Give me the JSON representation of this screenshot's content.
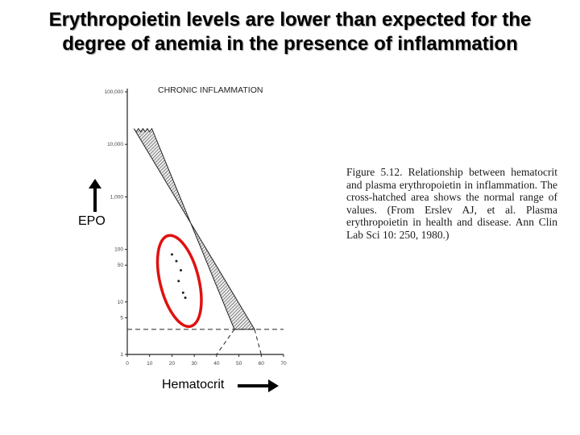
{
  "slide": {
    "title_line1": "Erythropoietin levels are lower than expected for the",
    "title_line2": "degree of anemia in the presence of inflammation",
    "epo_label": "EPO",
    "hematocrit_label": "Hematocrit"
  },
  "caption": "Figure 5.12. Relationship between hematocrit and plasma erythropoietin in inflammation. The cross-hatched area shows the normal range of values. (From Erslev AJ, et al. Plasma erythropoietin in health and disease. Ann Clin Lab Sci 10: 250, 1980.)",
  "colors": {
    "highlight_ellipse": "#e01010",
    "ink": "#222222"
  },
  "chart_data": {
    "type": "area",
    "title": "CHRONIC INFLAMMATION",
    "xlabel": "",
    "ylabel": "",
    "x_ticks": [
      "0",
      "10",
      "20",
      "30",
      "40",
      "50",
      "60",
      "70"
    ],
    "y_ticks": [
      "1",
      "5",
      "10",
      "50",
      "100",
      "1,000",
      "10,000",
      "100,000"
    ],
    "y_scale": "log",
    "xlim": [
      0,
      70
    ],
    "ylim": [
      1,
      100000
    ],
    "normal_range_band": {
      "upper_edge": [
        [
          3,
          20000
        ],
        [
          57,
          3
        ]
      ],
      "lower_edge": [
        [
          11,
          20000
        ],
        [
          48,
          3
        ]
      ],
      "top_at_hematocrit": [
        3,
        11
      ],
      "bottom_at_hematocrit": [
        48,
        57
      ]
    },
    "baseline_y": 3,
    "extension_lines": [
      {
        "from": [
          48,
          3
        ],
        "to": [
          40,
          1
        ]
      },
      {
        "from": [
          57,
          3
        ],
        "to": [
          60,
          1
        ]
      }
    ],
    "data_points": [
      {
        "x": 20,
        "y": 80
      },
      {
        "x": 22,
        "y": 60
      },
      {
        "x": 24,
        "y": 40
      },
      {
        "x": 23,
        "y": 25
      },
      {
        "x": 25,
        "y": 15
      },
      {
        "x": 26,
        "y": 12
      }
    ],
    "highlight": "ellipse around inflammation data points",
    "grid": false
  }
}
